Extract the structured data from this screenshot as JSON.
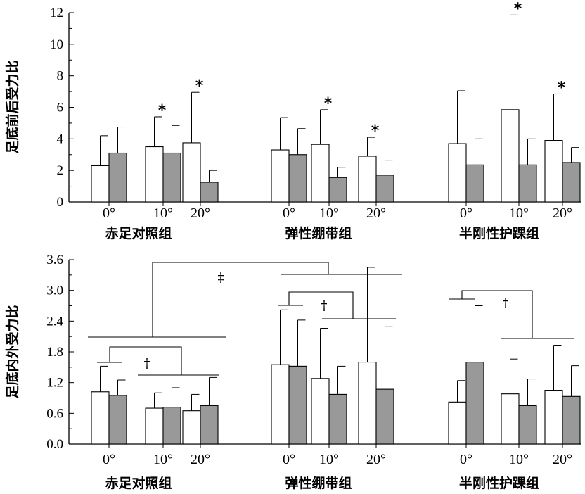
{
  "chart_data": [
    {
      "type": "bar",
      "ylabel": "足底前后受力比",
      "ylim": [
        0,
        12
      ],
      "yticks": [
        "0",
        "2",
        "4",
        "6",
        "8",
        "10",
        "12"
      ],
      "conditions": [
        "0°",
        "10°",
        "20°"
      ],
      "groups": [
        "赤足对照组",
        "弹性绷带组",
        "半刚性护踝组"
      ],
      "series_colors": [
        "#ffffff",
        "#999999"
      ],
      "bars": [
        {
          "group": 0,
          "cond": 0,
          "series": 0,
          "value": 2.3,
          "err": 1.9
        },
        {
          "group": 0,
          "cond": 0,
          "series": 1,
          "value": 3.1,
          "err": 1.65
        },
        {
          "group": 0,
          "cond": 1,
          "series": 0,
          "value": 3.5,
          "err": 1.9,
          "mark": "*"
        },
        {
          "group": 0,
          "cond": 1,
          "series": 1,
          "value": 3.1,
          "err": 1.75
        },
        {
          "group": 0,
          "cond": 2,
          "series": 0,
          "value": 3.75,
          "err": 3.2,
          "mark": "*"
        },
        {
          "group": 0,
          "cond": 2,
          "series": 1,
          "value": 1.25,
          "err": 0.75
        },
        {
          "group": 1,
          "cond": 0,
          "series": 0,
          "value": 3.3,
          "err": 2.05
        },
        {
          "group": 1,
          "cond": 0,
          "series": 1,
          "value": 3.0,
          "err": 1.65
        },
        {
          "group": 1,
          "cond": 1,
          "series": 0,
          "value": 3.65,
          "err": 2.2,
          "mark": "*"
        },
        {
          "group": 1,
          "cond": 1,
          "series": 1,
          "value": 1.55,
          "err": 0.65
        },
        {
          "group": 1,
          "cond": 2,
          "series": 0,
          "value": 2.9,
          "err": 1.2,
          "mark": "*"
        },
        {
          "group": 1,
          "cond": 2,
          "series": 1,
          "value": 1.7,
          "err": 0.95
        },
        {
          "group": 2,
          "cond": 0,
          "series": 0,
          "value": 3.7,
          "err": 3.35
        },
        {
          "group": 2,
          "cond": 0,
          "series": 1,
          "value": 2.35,
          "err": 1.65
        },
        {
          "group": 2,
          "cond": 1,
          "series": 0,
          "value": 5.85,
          "err": 6.0,
          "mark": "*"
        },
        {
          "group": 2,
          "cond": 1,
          "series": 1,
          "value": 2.35,
          "err": 1.65
        },
        {
          "group": 2,
          "cond": 2,
          "series": 0,
          "value": 3.9,
          "err": 2.95,
          "mark": "*"
        },
        {
          "group": 2,
          "cond": 2,
          "series": 1,
          "value": 2.5,
          "err": 0.95
        }
      ]
    },
    {
      "type": "bar",
      "ylabel": "足底内外受力比",
      "ylim": [
        0,
        3.6
      ],
      "yticks": [
        "0.0",
        "0.6",
        "1.2",
        "1.8",
        "2.4",
        "3.0",
        "3.6"
      ],
      "conditions": [
        "0°",
        "10°",
        "20°"
      ],
      "groups": [
        "赤足对照组",
        "弹性绷带组",
        "半刚性护踝组"
      ],
      "series_colors": [
        "#ffffff",
        "#999999"
      ],
      "bars": [
        {
          "group": 0,
          "cond": 0,
          "series": 0,
          "value": 1.02,
          "err": 0.5
        },
        {
          "group": 0,
          "cond": 0,
          "series": 1,
          "value": 0.95,
          "err": 0.3
        },
        {
          "group": 0,
          "cond": 1,
          "series": 0,
          "value": 0.7,
          "err": 0.3
        },
        {
          "group": 0,
          "cond": 1,
          "series": 1,
          "value": 0.72,
          "err": 0.38
        },
        {
          "group": 0,
          "cond": 2,
          "series": 0,
          "value": 0.65,
          "err": 0.32
        },
        {
          "group": 0,
          "cond": 2,
          "series": 1,
          "value": 0.75,
          "err": 0.55
        },
        {
          "group": 1,
          "cond": 0,
          "series": 0,
          "value": 1.55,
          "err": 1.07
        },
        {
          "group": 1,
          "cond": 0,
          "series": 1,
          "value": 1.52,
          "err": 0.9
        },
        {
          "group": 1,
          "cond": 1,
          "series": 0,
          "value": 1.28,
          "err": 0.98
        },
        {
          "group": 1,
          "cond": 1,
          "series": 1,
          "value": 0.97,
          "err": 0.55
        },
        {
          "group": 1,
          "cond": 2,
          "series": 0,
          "value": 1.6,
          "err": 1.85
        },
        {
          "group": 1,
          "cond": 2,
          "series": 1,
          "value": 1.07,
          "err": 1.22
        },
        {
          "group": 2,
          "cond": 0,
          "series": 0,
          "value": 0.82,
          "err": 0.42
        },
        {
          "group": 2,
          "cond": 0,
          "series": 1,
          "value": 1.6,
          "err": 1.1
        },
        {
          "group": 2,
          "cond": 1,
          "series": 0,
          "value": 0.98,
          "err": 0.68
        },
        {
          "group": 2,
          "cond": 1,
          "series": 1,
          "value": 0.75,
          "err": 0.52
        },
        {
          "group": 2,
          "cond": 2,
          "series": 0,
          "value": 1.05,
          "err": 0.88
        },
        {
          "group": 2,
          "cond": 2,
          "series": 1,
          "value": 0.93,
          "err": 0.6
        }
      ],
      "annotations": {
        "double_dagger": "‡",
        "dagger": "†"
      }
    }
  ]
}
